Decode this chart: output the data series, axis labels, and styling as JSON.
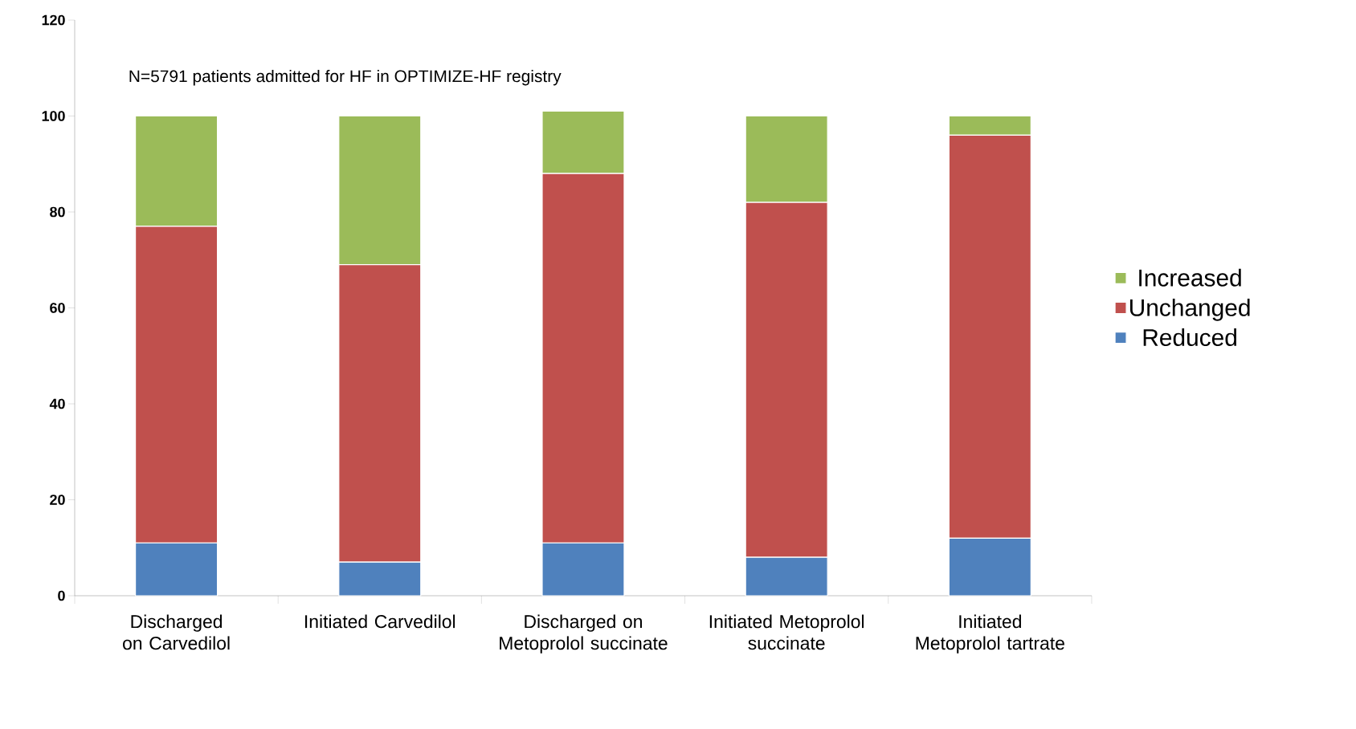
{
  "chart_data": {
    "type": "bar",
    "stacked": true,
    "categories": [
      "Discharged on Carvedilol",
      "Initiated Carvedilol",
      "Discharged on Metoprolol succinate",
      "Initiated Metoprolol succinate",
      "Initiated Metoprolol tartrate"
    ],
    "series": [
      {
        "name": "Reduced",
        "color": "#4f81bd",
        "values": [
          11,
          7,
          11,
          8,
          12
        ]
      },
      {
        "name": "Unchanged",
        "color": "#c0504d",
        "values": [
          66,
          62,
          77,
          74,
          84
        ]
      },
      {
        "name": "Increased",
        "color": "#9bbb59",
        "values": [
          23,
          31,
          13,
          18,
          4
        ]
      }
    ],
    "ylim": [
      0,
      120
    ],
    "yticks": [
      0,
      20,
      40,
      60,
      80,
      100,
      120
    ],
    "annotations": [
      "N=5791 patients admitted for HF in OPTIMIZE-HF registry"
    ],
    "legend": "right",
    "grid": false
  }
}
